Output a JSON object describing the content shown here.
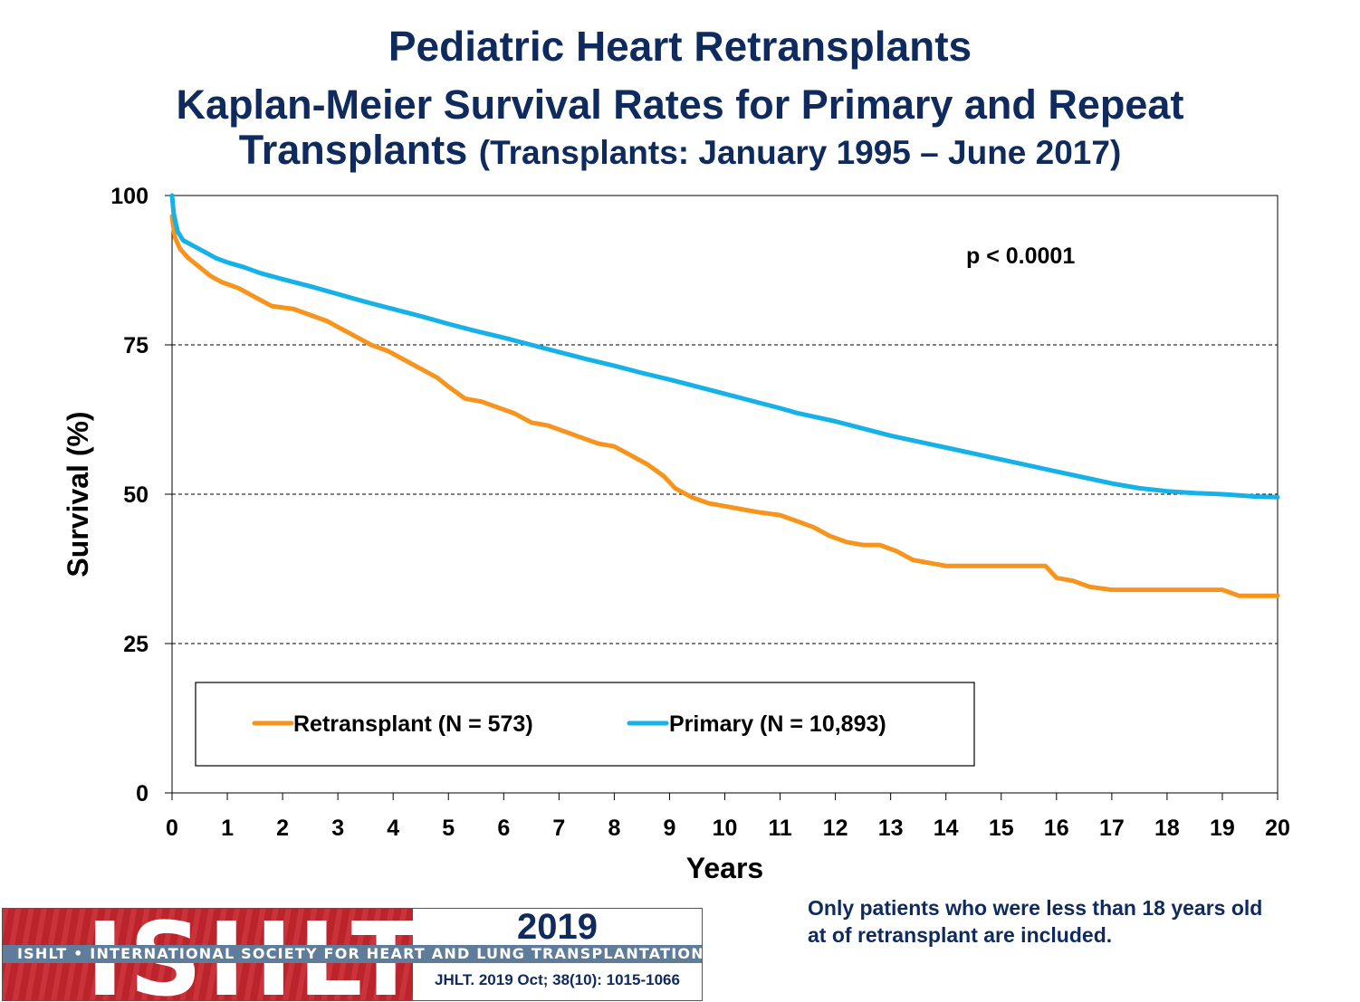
{
  "header": {
    "title": "Pediatric Heart Retransplants",
    "subtitle_line1": "Kaplan-Meier Survival Rates for Primary and Repeat",
    "subtitle_line2_main": "Transplants",
    "subtitle_line2_small": "(Transplants: January 1995 – June 2017)"
  },
  "chart_data": {
    "type": "line",
    "xlabel": "Years",
    "ylabel": "Survival (%)",
    "xlim": [
      0,
      20
    ],
    "ylim": [
      0,
      100
    ],
    "x_ticks": [
      "0",
      "1",
      "2",
      "3",
      "4",
      "5",
      "6",
      "7",
      "8",
      "9",
      "10",
      "11",
      "12",
      "13",
      "14",
      "15",
      "16",
      "17",
      "18",
      "19",
      "20"
    ],
    "y_ticks": [
      "0",
      "25",
      "50",
      "75",
      "100"
    ],
    "grid": "dashed horizontal at 25, 50, 75",
    "annotation": "p < 0.0001",
    "legend_position": "bottom-left inside plot",
    "series": [
      {
        "name": "Retransplant (N = 573)",
        "color": "#f7941d",
        "x": [
          0,
          0.05,
          0.15,
          0.3,
          0.5,
          0.7,
          0.9,
          1.2,
          1.5,
          1.8,
          2.2,
          2.5,
          2.8,
          3.0,
          3.3,
          3.6,
          3.9,
          4.2,
          4.5,
          4.8,
          5.0,
          5.3,
          5.6,
          5.9,
          6.2,
          6.5,
          6.8,
          7.1,
          7.4,
          7.7,
          8.0,
          8.3,
          8.6,
          8.9,
          9.1,
          9.4,
          9.7,
          10.0,
          10.3,
          10.6,
          11.0,
          11.3,
          11.6,
          11.9,
          12.2,
          12.5,
          12.8,
          13.1,
          13.4,
          13.7,
          14.0,
          14.5,
          15.0,
          15.5,
          15.8,
          16.0,
          16.3,
          16.6,
          17.0,
          17.5,
          18.0,
          18.5,
          19.0,
          19.3,
          19.6,
          20.0
        ],
        "y": [
          96.5,
          93,
          91,
          89.5,
          88,
          86.5,
          85.5,
          84.5,
          83,
          81.5,
          81,
          80,
          79,
          78,
          76.5,
          75,
          74,
          72.5,
          71,
          69.5,
          68,
          66,
          65.5,
          64.5,
          63.5,
          62,
          61.5,
          60.5,
          59.5,
          58.5,
          58,
          56.5,
          55,
          53,
          51,
          49.5,
          48.5,
          48,
          47.5,
          47,
          46.5,
          45.5,
          44.5,
          43,
          42,
          41.5,
          41.5,
          40.5,
          39,
          38.5,
          38,
          38,
          38,
          38,
          38,
          36,
          35.5,
          34.5,
          34,
          34,
          34,
          34,
          34,
          33,
          33,
          33
        ]
      },
      {
        "name": "Primary (N = 10,893)",
        "color": "#16b1e6",
        "x": [
          0,
          0.03,
          0.1,
          0.2,
          0.4,
          0.6,
          0.8,
          1.0,
          1.3,
          1.6,
          2.0,
          2.5,
          3.0,
          3.5,
          4.0,
          4.5,
          5.0,
          5.5,
          6.0,
          6.5,
          7.0,
          7.5,
          8.0,
          8.5,
          9.0,
          9.5,
          10.0,
          10.5,
          11.0,
          11.3,
          11.6,
          12.0,
          12.5,
          13.0,
          13.5,
          14.0,
          14.5,
          15.0,
          15.5,
          16.0,
          16.5,
          17.0,
          17.5,
          18.0,
          18.5,
          19.0,
          19.3,
          19.6,
          20.0
        ],
        "y": [
          100,
          97,
          94,
          92.5,
          91.5,
          90.5,
          89.5,
          88.8,
          88,
          87,
          86,
          84.8,
          83.5,
          82.2,
          81,
          79.8,
          78.5,
          77.3,
          76.2,
          75,
          73.8,
          72.6,
          71.5,
          70.3,
          69.2,
          68,
          66.8,
          65.6,
          64.4,
          63.6,
          63,
          62.2,
          61,
          59.8,
          58.8,
          57.8,
          56.8,
          55.8,
          54.8,
          53.8,
          52.8,
          51.8,
          51,
          50.5,
          50.2,
          50,
          49.8,
          49.6,
          49.5
        ]
      }
    ]
  },
  "footnote": {
    "line1": "Only patients who were less than 18 years old",
    "line2": "at of retransplant are included."
  },
  "logo": {
    "letters": "ISHLT",
    "band_text": "ISHLT • INTERNATIONAL SOCIETY FOR HEART AND LUNG TRANSPLANTATION",
    "year": "2019",
    "reference": "JHLT. 2019 Oct; 38(10): 1015-1066"
  }
}
